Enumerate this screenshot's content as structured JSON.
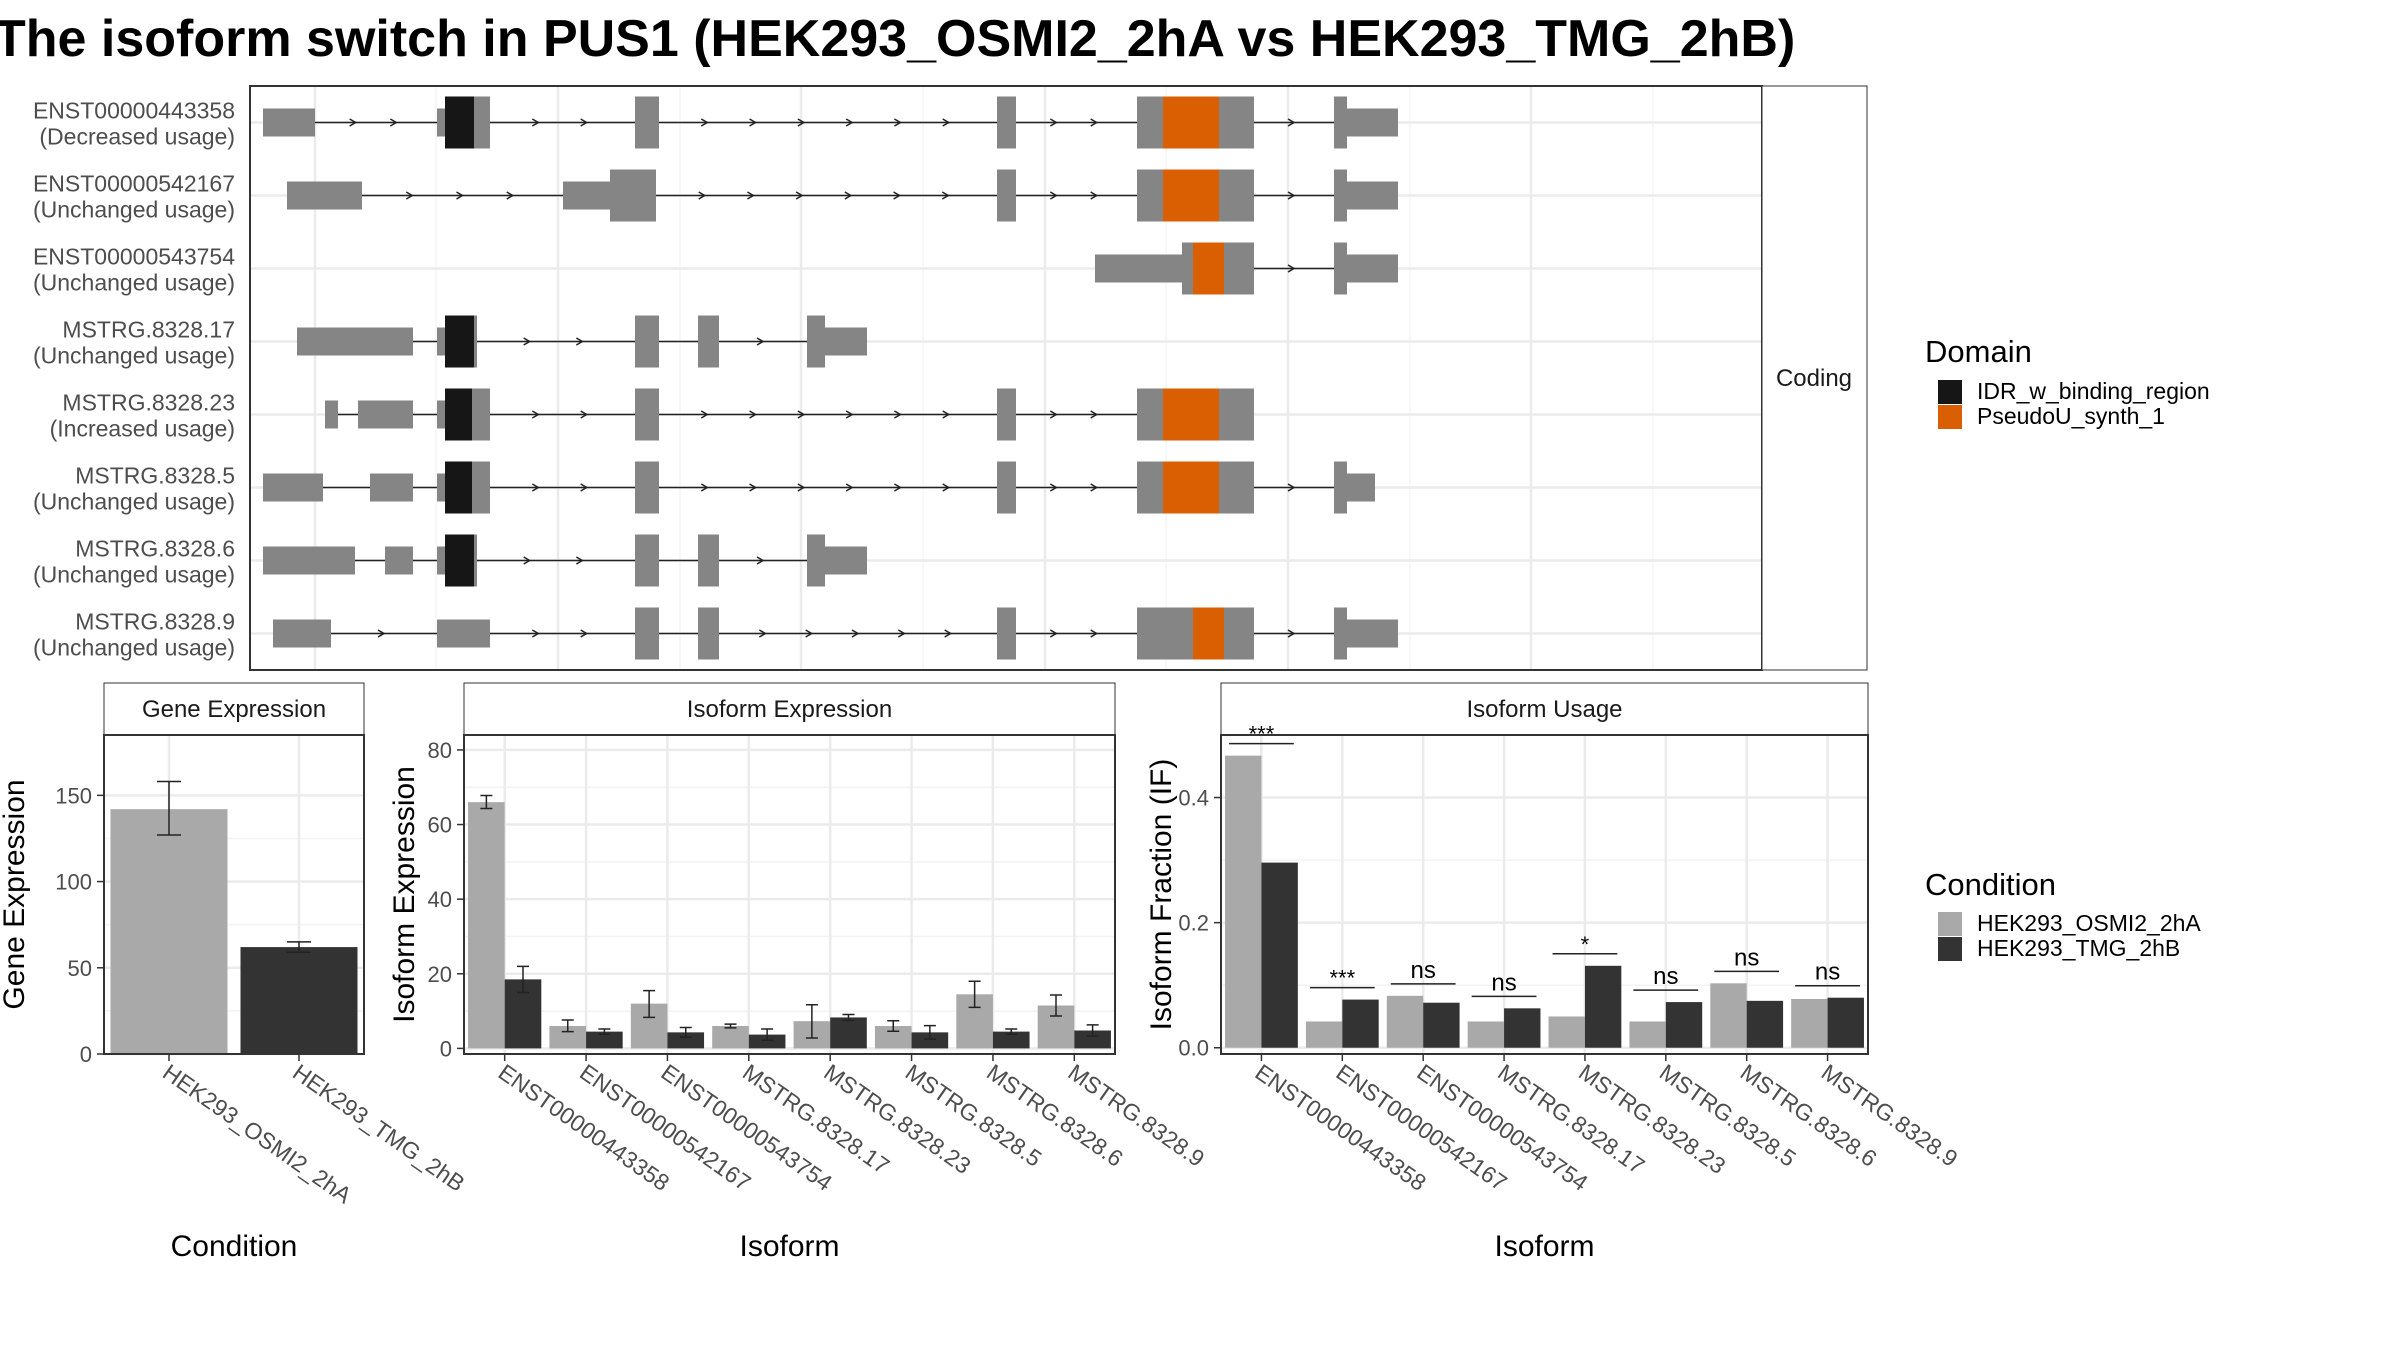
{
  "title": "The isoform switch in PUS1 (HEK293_OSMI2_2hA vs HEK293_TMG_2hB)",
  "colors": {
    "exon": "#858585",
    "IDR_w_binding_region": "#161616",
    "PseudoU_synth_1": "#d95f02",
    "cond1": "#a9a9a9",
    "cond2": "#333333",
    "grid": "#ebebeb",
    "panel_border": "#333333",
    "strip_bg": "#ffffff"
  },
  "structure": {
    "strip_label": "Coding",
    "transcripts": [
      {
        "id": "ENST00000443358",
        "usage": "(Decreased usage)",
        "segs": [
          [
            263,
            315,
            "n"
          ],
          [
            437,
            445,
            "n"
          ],
          [
            445,
            474,
            "I"
          ],
          [
            474,
            490,
            "c"
          ],
          [
            635,
            659,
            "c"
          ],
          [
            997,
            1016,
            "c"
          ],
          [
            1137,
            1163,
            "c"
          ],
          [
            1163,
            1219,
            "P"
          ],
          [
            1219,
            1254,
            "c"
          ],
          [
            1334,
            1347,
            "c"
          ],
          [
            1347,
            1398,
            "n"
          ]
        ]
      },
      {
        "id": "ENST00000542167",
        "usage": "(Unchanged usage)",
        "segs": [
          [
            287,
            362,
            "n"
          ],
          [
            563,
            610,
            "n"
          ],
          [
            610,
            656,
            "c"
          ],
          [
            997,
            1016,
            "c"
          ],
          [
            1137,
            1163,
            "c"
          ],
          [
            1163,
            1219,
            "P"
          ],
          [
            1219,
            1254,
            "c"
          ],
          [
            1334,
            1347,
            "c"
          ],
          [
            1347,
            1398,
            "n"
          ]
        ]
      },
      {
        "id": "ENST00000543754",
        "usage": "(Unchanged usage)",
        "segs": [
          [
            1095,
            1182,
            "n"
          ],
          [
            1182,
            1193,
            "c"
          ],
          [
            1193,
            1224,
            "P"
          ],
          [
            1224,
            1254,
            "c"
          ],
          [
            1334,
            1347,
            "c"
          ],
          [
            1347,
            1398,
            "n"
          ]
        ]
      },
      {
        "id": "MSTRG.8328.17",
        "usage": "(Unchanged usage)",
        "segs": [
          [
            297,
            413,
            "n"
          ],
          [
            437,
            445,
            "n"
          ],
          [
            445,
            474,
            "I"
          ],
          [
            474,
            477,
            "c"
          ],
          [
            635,
            659,
            "c"
          ],
          [
            698,
            719,
            "c"
          ],
          [
            807,
            825,
            "c"
          ],
          [
            825,
            867,
            "n"
          ]
        ]
      },
      {
        "id": "MSTRG.8328.23",
        "usage": "(Increased usage)",
        "segs": [
          [
            325,
            338,
            "n"
          ],
          [
            358,
            413,
            "n"
          ],
          [
            437,
            445,
            "n"
          ],
          [
            445,
            472,
            "I"
          ],
          [
            472,
            490,
            "c"
          ],
          [
            635,
            659,
            "c"
          ],
          [
            997,
            1016,
            "c"
          ],
          [
            1137,
            1163,
            "c"
          ],
          [
            1163,
            1219,
            "P"
          ],
          [
            1219,
            1254,
            "c"
          ]
        ]
      },
      {
        "id": "MSTRG.8328.5",
        "usage": "(Unchanged usage)",
        "segs": [
          [
            263,
            323,
            "n"
          ],
          [
            370,
            413,
            "n"
          ],
          [
            437,
            445,
            "n"
          ],
          [
            445,
            472,
            "I"
          ],
          [
            472,
            490,
            "c"
          ],
          [
            635,
            659,
            "c"
          ],
          [
            997,
            1016,
            "c"
          ],
          [
            1137,
            1163,
            "c"
          ],
          [
            1163,
            1219,
            "P"
          ],
          [
            1219,
            1254,
            "c"
          ],
          [
            1334,
            1347,
            "c"
          ],
          [
            1347,
            1375,
            "n"
          ]
        ]
      },
      {
        "id": "MSTRG.8328.6",
        "usage": "(Unchanged usage)",
        "segs": [
          [
            263,
            355,
            "n"
          ],
          [
            385,
            413,
            "n"
          ],
          [
            437,
            445,
            "n"
          ],
          [
            445,
            474,
            "I"
          ],
          [
            474,
            477,
            "c"
          ],
          [
            635,
            659,
            "c"
          ],
          [
            698,
            719,
            "c"
          ],
          [
            807,
            825,
            "c"
          ],
          [
            825,
            867,
            "n"
          ]
        ]
      },
      {
        "id": "MSTRG.8328.9",
        "usage": "(Unchanged usage)",
        "segs": [
          [
            273,
            331,
            "n"
          ],
          [
            437,
            490,
            "n"
          ],
          [
            635,
            659,
            "c"
          ],
          [
            698,
            719,
            "c"
          ],
          [
            997,
            1016,
            "c"
          ],
          [
            1137,
            1182,
            "c"
          ],
          [
            1182,
            1193,
            "c"
          ],
          [
            1193,
            1224,
            "P"
          ],
          [
            1224,
            1254,
            "c"
          ],
          [
            1334,
            1347,
            "c"
          ],
          [
            1347,
            1398,
            "n"
          ]
        ]
      }
    ]
  },
  "legend_domain": {
    "title": "Domain",
    "items": [
      {
        "key": "IDR_w_binding_region",
        "label": "IDR_w_binding_region"
      },
      {
        "key": "PseudoU_synth_1",
        "label": "PseudoU_synth_1"
      }
    ]
  },
  "legend_condition": {
    "title": "Condition",
    "items": [
      {
        "key": "cond1",
        "label": "HEK293_OSMI2_2hA"
      },
      {
        "key": "cond2",
        "label": "HEK293_TMG_2hB"
      }
    ]
  },
  "chart_data": [
    {
      "type": "bar",
      "strip": "Gene Expression",
      "xlabel": "Condition",
      "ylabel": "Gene Expression",
      "ylim": [
        0,
        185
      ],
      "yticks": [
        0,
        50,
        100,
        150
      ],
      "categories": [
        "HEK293_OSMI2_2hA",
        "HEK293_TMG_2hB"
      ],
      "values": [
        142,
        62
      ],
      "errors": [
        [
          127,
          158
        ],
        [
          59,
          65
        ]
      ],
      "fills": [
        "cond1",
        "cond2"
      ]
    },
    {
      "type": "bar",
      "strip": "Isoform Expression",
      "xlabel": "Isoform",
      "ylabel": "Isoform Expression",
      "ylim": [
        -1.5,
        84
      ],
      "yticks": [
        0,
        20,
        40,
        60,
        80
      ],
      "categories": [
        "ENST00000443358",
        "ENST00000542167",
        "ENST00000543754",
        "MSTRG.8328.17",
        "MSTRG.8328.23",
        "MSTRG.8328.5",
        "MSTRG.8328.6",
        "MSTRG.8328.9"
      ],
      "series": [
        {
          "name": "HEK293_OSMI2_2hA",
          "color": "cond1",
          "values": [
            66,
            6,
            12,
            6,
            7.3,
            6,
            14.5,
            11.5
          ],
          "errors": [
            [
              64.3,
              67.8
            ],
            [
              4.5,
              7.6
            ],
            [
              8.3,
              15.5
            ],
            [
              5.5,
              6.5
            ],
            [
              2.8,
              11.7
            ],
            [
              4.6,
              7.4
            ],
            [
              11,
              18
            ],
            [
              8.7,
              14.3
            ]
          ]
        },
        {
          "name": "HEK293_TMG_2hB",
          "color": "cond2",
          "values": [
            18.5,
            4.5,
            4.3,
            3.7,
            8.3,
            4.3,
            4.5,
            4.8
          ],
          "errors": [
            [
              15,
              22
            ],
            [
              3.8,
              5.2
            ],
            [
              3,
              5.6
            ],
            [
              2.2,
              5.2
            ],
            [
              7.5,
              9.1
            ],
            [
              2.5,
              6.1
            ],
            [
              3.8,
              5.2
            ],
            [
              3.3,
              6.3
            ]
          ]
        }
      ]
    },
    {
      "type": "bar",
      "strip": "Isoform Usage",
      "xlabel": "Isoform",
      "ylabel": "Isoform Fraction (IF)",
      "ylim": [
        -0.01,
        0.5
      ],
      "yticks": [
        0.0,
        0.2,
        0.4
      ],
      "tick_labels": [
        "0.0",
        "0.2",
        "0.4"
      ],
      "categories": [
        "ENST00000443358",
        "ENST00000542167",
        "ENST00000543754",
        "MSTRG.8328.17",
        "MSTRG.8328.23",
        "MSTRG.8328.5",
        "MSTRG.8328.6",
        "MSTRG.8328.9"
      ],
      "series": [
        {
          "name": "HEK293_OSMI2_2hA",
          "color": "cond1",
          "values": [
            0.467,
            0.042,
            0.083,
            0.042,
            0.05,
            0.042,
            0.103,
            0.078
          ]
        },
        {
          "name": "HEK293_TMG_2hB",
          "color": "cond2",
          "values": [
            0.296,
            0.077,
            0.072,
            0.063,
            0.131,
            0.073,
            0.075,
            0.08
          ]
        }
      ],
      "significance": [
        "***",
        "***",
        "ns",
        "ns",
        "*",
        "ns",
        "ns",
        "ns"
      ]
    }
  ]
}
